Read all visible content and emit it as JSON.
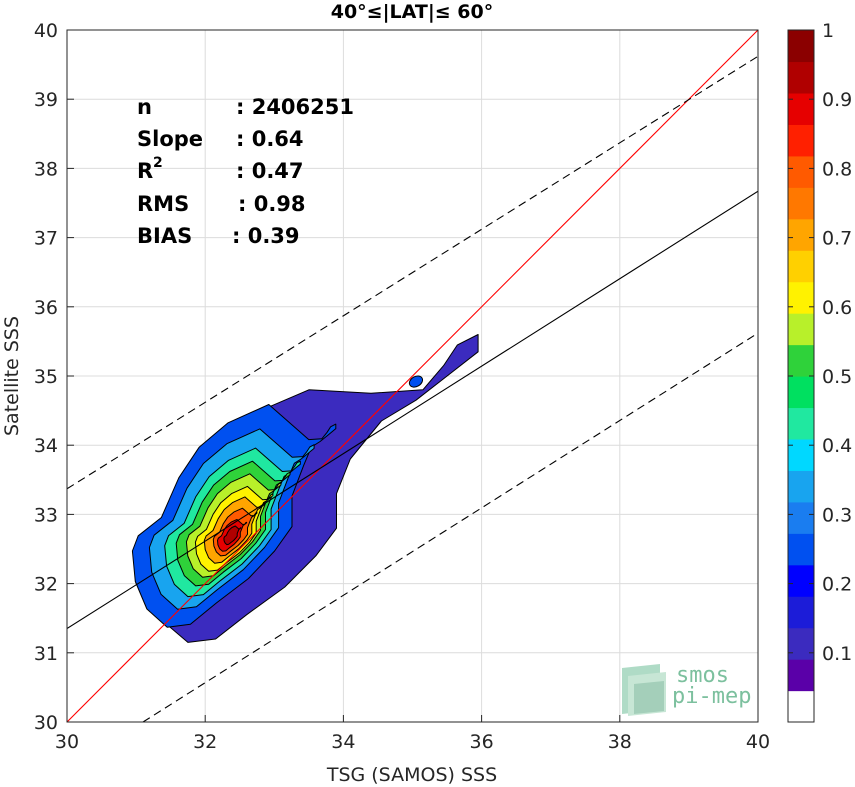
{
  "chart_data": {
    "type": "heatmap",
    "subtype": "filled density contour scatter",
    "title": "40°≤|LAT|≤ 60°",
    "xlabel": "TSG (SAMOS) SSS",
    "ylabel": "Satellite SSS",
    "xlim": [
      30,
      40
    ],
    "ylim": [
      30,
      40
    ],
    "xticks": [
      "30",
      "32",
      "34",
      "36",
      "38",
      "40"
    ],
    "yticks": [
      "30",
      "31",
      "32",
      "33",
      "34",
      "35",
      "36",
      "37",
      "38",
      "39",
      "40"
    ],
    "grid": true,
    "stats": [
      {
        "label": "n",
        "value": ": 2406251"
      },
      {
        "label": "Slope",
        "value": ": 0.64"
      },
      {
        "label": "R",
        "sup": "2",
        "value": ": 0.47"
      },
      {
        "label": "RMS",
        "value": ": 0.98"
      },
      {
        "label": "BIAS",
        "value": ": 0.39"
      }
    ],
    "lines": [
      {
        "name": "one-to-one",
        "x": [
          30,
          40
        ],
        "y": [
          30,
          40
        ],
        "color": "#ff0000",
        "style": "solid"
      },
      {
        "name": "regression",
        "x": [
          30,
          40
        ],
        "y": [
          31.35,
          37.67
        ],
        "color": "#000000",
        "style": "solid"
      },
      {
        "name": "upper-bound",
        "x": [
          30,
          40
        ],
        "y": [
          33.37,
          39.62
        ],
        "color": "#000000",
        "style": "dashed"
      },
      {
        "name": "lower-bound",
        "x": [
          31.1,
          40
        ],
        "y": [
          30,
          35.62
        ],
        "color": "#000000",
        "style": "dashed"
      }
    ],
    "density_contours": [
      {
        "level": 0.05,
        "center": [
          33.0,
          33.0
        ],
        "color": "#3b2bbf"
      },
      {
        "level": 0.15,
        "center": [
          32.5,
          33.0
        ],
        "color": "#0050f0"
      },
      {
        "level": 0.25,
        "center": [
          32.45,
          32.95
        ],
        "color": "#18a4ef"
      },
      {
        "level": 0.35,
        "center": [
          32.45,
          32.9
        ],
        "color": "#20e8a0"
      },
      {
        "level": 0.45,
        "center": [
          32.45,
          32.88
        ],
        "color": "#2fd23a"
      },
      {
        "level": 0.55,
        "center": [
          32.45,
          32.85
        ],
        "color": "#b8f02a"
      },
      {
        "level": 0.6,
        "center": [
          32.45,
          32.8
        ],
        "color": "#fff200"
      },
      {
        "level": 0.7,
        "center": [
          32.45,
          32.78
        ],
        "color": "#ffa500"
      },
      {
        "level": 0.8,
        "center": [
          32.45,
          32.75
        ],
        "color": "#ff5a00"
      },
      {
        "level": 0.9,
        "center": [
          32.4,
          32.7
        ],
        "color": "#e60000"
      },
      {
        "level": 0.95,
        "center": [
          32.4,
          32.7
        ],
        "color": "#b00000"
      }
    ],
    "colorbar": {
      "min": 0,
      "max": 1,
      "ticks": [
        "0.1",
        "0.2",
        "0.3",
        "0.4",
        "0.5",
        "0.6",
        "0.7",
        "0.8",
        "0.9",
        "1"
      ],
      "colors": [
        "#ffffff",
        "#5a00a8",
        "#3b2bbf",
        "#1c1cd8",
        "#0000ff",
        "#0050f0",
        "#1a7df0",
        "#18a4ef",
        "#00d8ff",
        "#20e8a0",
        "#00e060",
        "#2fd23a",
        "#b8f02a",
        "#fff200",
        "#ffd000",
        "#ffa500",
        "#ff7800",
        "#ff5a00",
        "#ff2000",
        "#e60000",
        "#b00000",
        "#8b0000"
      ]
    }
  },
  "watermark": {
    "line1": "smos",
    "line2": "pi-mep"
  }
}
